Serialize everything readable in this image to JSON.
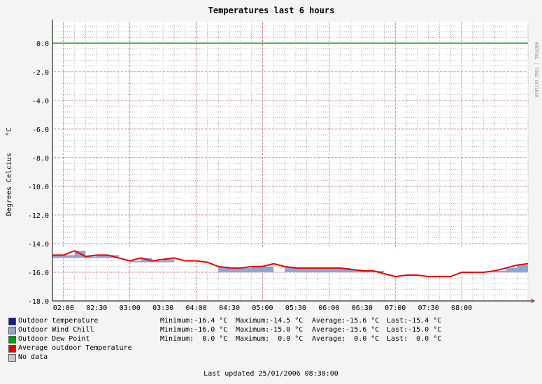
{
  "chart_data": {
    "type": "line",
    "title": "Temperatures last 6 hours",
    "ylabel": "Degrees Celcius    °C",
    "xlabel": "",
    "watermark": "RRDTOOL / TOBI OETIKER",
    "ylim": [
      -18,
      1.5
    ],
    "xlim": [
      "01:50",
      "09:00"
    ],
    "y_ticks": [
      "0.0",
      "-2.0",
      "-4.0",
      "-6.0",
      "-8.0",
      "-10.0",
      "-12.0",
      "-14.0",
      "-16.0",
      "-18.0"
    ],
    "x_ticks": [
      "02:00",
      "02:30",
      "03:00",
      "03:30",
      "04:00",
      "04:30",
      "05:00",
      "05:30",
      "06:00",
      "06:30",
      "07:00",
      "07:30",
      "08:00"
    ],
    "grid": true,
    "colors": {
      "outdoor_temperature": "#1c1c8c",
      "wind_chill": "#8ea6d6",
      "dew_point": "#007a00",
      "average": "#e80000",
      "no_data": "#c8c8c8",
      "grid_major": "#c05050",
      "grid_minor": "#909090",
      "background": "#f4f4f4",
      "plot_bg": "#ffffff"
    },
    "series": [
      {
        "name": "Outdoor temperature",
        "x": [
          "01:50",
          "02:00",
          "02:10",
          "02:20",
          "02:30",
          "02:40",
          "02:50",
          "03:00",
          "03:10",
          "03:20",
          "03:30",
          "03:40",
          "03:50",
          "04:00",
          "04:10",
          "04:20",
          "04:30",
          "04:40",
          "04:50",
          "05:00",
          "05:10",
          "05:20",
          "05:30",
          "05:40",
          "05:50",
          "06:00",
          "06:10",
          "06:20",
          "06:30",
          "06:40",
          "06:50",
          "07:00",
          "07:10",
          "07:20",
          "07:30",
          "07:40",
          "07:50",
          "08:00",
          "08:10",
          "08:20",
          "08:30",
          "08:40",
          "08:50",
          "09:00"
        ],
        "values": [
          -14.8,
          -14.8,
          -14.5,
          -14.9,
          -14.8,
          -14.8,
          -15.0,
          -15.2,
          -15.0,
          -15.2,
          -15.1,
          -15.0,
          -15.2,
          -15.2,
          -15.3,
          -15.6,
          -15.7,
          -15.7,
          -15.6,
          -15.6,
          -15.4,
          -15.6,
          -15.7,
          -15.7,
          -15.7,
          -15.7,
          -15.7,
          -15.8,
          -15.9,
          -15.9,
          -16.1,
          -16.3,
          -16.2,
          -16.2,
          -16.3,
          -16.3,
          -16.3,
          -16.0,
          -16.0,
          -16.0,
          -15.9,
          -15.7,
          -15.5,
          -15.4
        ]
      },
      {
        "name": "Outdoor Wind Chill",
        "x": [
          "01:50",
          "02:00",
          "02:10",
          "02:20",
          "02:30",
          "02:40",
          "02:50",
          "03:00",
          "03:10",
          "03:20",
          "03:30",
          "03:40",
          "03:50",
          "04:00",
          "04:10",
          "04:20",
          "04:30",
          "04:40",
          "04:50",
          "05:00",
          "05:10",
          "05:20",
          "05:30",
          "05:40",
          "05:50",
          "06:00",
          "06:10",
          "06:20",
          "06:30",
          "06:40",
          "06:50",
          "07:00",
          "07:10",
          "07:20",
          "07:30",
          "07:40",
          "07:50",
          "08:00",
          "08:10",
          "08:20",
          "08:30",
          "08:40",
          "08:50",
          "09:00"
        ],
        "values": [
          -15.0,
          -15.0,
          -15.0,
          -15.0,
          -15.0,
          -15.0,
          -15.0,
          -15.3,
          -15.3,
          -15.3,
          -15.3,
          -15.0,
          -15.0,
          -15.0,
          -15.3,
          -16.0,
          -16.0,
          -16.0,
          -16.0,
          -16.0,
          -15.0,
          -16.0,
          -16.0,
          -16.0,
          -16.0,
          -16.0,
          -16.0,
          -16.0,
          -16.0,
          -16.0,
          -16.0,
          -16.0,
          -16.0,
          -16.0,
          -16.0,
          -16.0,
          -16.0,
          -16.0,
          -16.0,
          -16.0,
          -16.0,
          -16.0,
          -16.0,
          -15.0
        ]
      },
      {
        "name": "Outdoor Dew Point",
        "x": [
          "01:50",
          "09:00"
        ],
        "values": [
          0.0,
          0.0
        ]
      },
      {
        "name": "Average outdoor Temperature",
        "x": [
          "01:50",
          "02:00",
          "02:10",
          "02:20",
          "02:30",
          "02:40",
          "02:50",
          "03:00",
          "03:10",
          "03:20",
          "03:30",
          "03:40",
          "03:50",
          "04:00",
          "04:10",
          "04:20",
          "04:30",
          "04:40",
          "04:50",
          "05:00",
          "05:10",
          "05:20",
          "05:30",
          "05:40",
          "05:50",
          "06:00",
          "06:10",
          "06:20",
          "06:30",
          "06:40",
          "06:50",
          "07:00",
          "07:10",
          "07:20",
          "07:30",
          "07:40",
          "07:50",
          "08:00",
          "08:10",
          "08:20",
          "08:30",
          "08:40",
          "08:50",
          "09:00"
        ],
        "values": [
          -14.8,
          -14.8,
          -14.5,
          -14.9,
          -14.8,
          -14.8,
          -15.0,
          -15.2,
          -15.0,
          -15.2,
          -15.1,
          -15.0,
          -15.2,
          -15.2,
          -15.3,
          -15.6,
          -15.7,
          -15.7,
          -15.6,
          -15.6,
          -15.4,
          -15.6,
          -15.7,
          -15.7,
          -15.7,
          -15.7,
          -15.7,
          -15.8,
          -15.9,
          -15.9,
          -16.1,
          -16.3,
          -16.2,
          -16.2,
          -16.3,
          -16.3,
          -16.3,
          -16.0,
          -16.0,
          -16.0,
          -15.9,
          -15.7,
          -15.5,
          -15.4
        ]
      }
    ]
  },
  "legend": [
    {
      "label": "Outdoor temperature",
      "color": "#1c1c8c",
      "min": "Minimum:-16.4 °C",
      "max": "Maximum:-14.5 °C",
      "avg": "Average:-15.6 °C",
      "last": "Last:-15.4 °C"
    },
    {
      "label": "Outdoor Wind Chill",
      "color": "#8ea6d6",
      "min": "Minimum:-16.0 °C",
      "max": "Maximum:-15.0 °C",
      "avg": "Average:-15.6 °C",
      "last": "Last:-15.0 °C"
    },
    {
      "label": "Outdoor Dew Point",
      "color": "#00a000",
      "min": "Minimum:  0.0 °C",
      "max": "Maximum:  0.0 °C",
      "avg": "Average:  0.0 °C",
      "last": "Last:  0.0 °C"
    },
    {
      "label": "Average outdoor Temperature",
      "color": "#e80000",
      "min": "",
      "max": "",
      "avg": "",
      "last": ""
    },
    {
      "label": "No data",
      "color": "#c8c8c8",
      "min": "",
      "max": "",
      "avg": "",
      "last": ""
    }
  ],
  "footer": "Last updated 25/01/2006 08:30:00"
}
